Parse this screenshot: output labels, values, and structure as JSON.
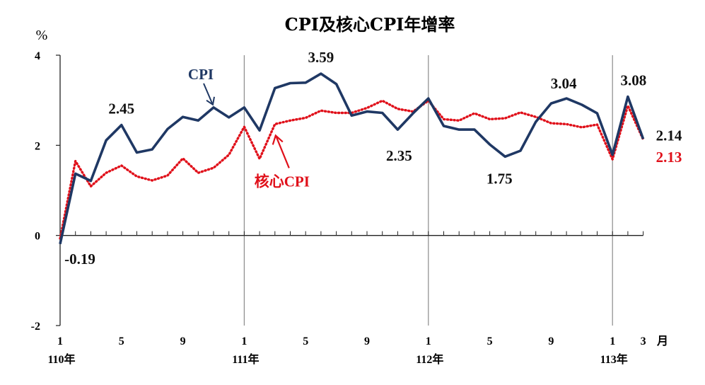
{
  "chart_data": {
    "type": "line",
    "title": "CPI及核心CPI年增率",
    "ylabel": "%",
    "xlabel_unit": "月",
    "ylim": [
      -2,
      4
    ],
    "yticks": [
      "4",
      "2",
      "0",
      "-2"
    ],
    "x_ticks": [
      {
        "index": 0,
        "label": "1",
        "year": "110年"
      },
      {
        "index": 4,
        "label": "5"
      },
      {
        "index": 8,
        "label": "9"
      },
      {
        "index": 12,
        "label": "1",
        "year": "111年"
      },
      {
        "index": 16,
        "label": "5"
      },
      {
        "index": 20,
        "label": "9"
      },
      {
        "index": 24,
        "label": "1",
        "year": "112年"
      },
      {
        "index": 28,
        "label": "5"
      },
      {
        "index": 32,
        "label": "9"
      },
      {
        "index": 36,
        "label": "1",
        "year": "113年"
      },
      {
        "index": 38,
        "label": "3"
      }
    ],
    "year_dividers": [
      0,
      12,
      24,
      36
    ],
    "series": [
      {
        "name": "CPI",
        "color": "#1f3864",
        "style": "solid",
        "values": [
          -0.19,
          1.37,
          1.21,
          2.11,
          2.45,
          1.84,
          1.91,
          2.36,
          2.63,
          2.55,
          2.84,
          2.62,
          2.84,
          2.33,
          3.27,
          3.38,
          3.39,
          3.59,
          3.36,
          2.66,
          2.75,
          2.72,
          2.35,
          2.71,
          3.04,
          2.43,
          2.35,
          2.35,
          2.02,
          1.75,
          1.88,
          2.52,
          2.93,
          3.04,
          2.9,
          2.71,
          1.79,
          3.08,
          2.14
        ]
      },
      {
        "name": "核心CPI",
        "color": "#e0101a",
        "style": "dotted",
        "values": [
          -0.07,
          1.65,
          1.09,
          1.39,
          1.55,
          1.31,
          1.22,
          1.33,
          1.71,
          1.39,
          1.5,
          1.79,
          2.41,
          1.7,
          2.47,
          2.55,
          2.61,
          2.77,
          2.72,
          2.72,
          2.83,
          2.99,
          2.81,
          2.75,
          2.99,
          2.58,
          2.55,
          2.71,
          2.58,
          2.6,
          2.73,
          2.63,
          2.49,
          2.47,
          2.4,
          2.46,
          1.69,
          2.88,
          2.13
        ]
      }
    ],
    "annotations": [
      {
        "text": "-0.19",
        "series": 0,
        "index": 0
      },
      {
        "text": "2.45",
        "series": 0,
        "index": 4
      },
      {
        "text": "3.59",
        "series": 0,
        "index": 17
      },
      {
        "text": "2.35",
        "series": 0,
        "index": 22
      },
      {
        "text": "1.75",
        "series": 0,
        "index": 29
      },
      {
        "text": "3.04",
        "series": 0,
        "index": 33
      },
      {
        "text": "3.08",
        "series": 0,
        "index": 37
      },
      {
        "text": "2.14",
        "series": 0,
        "index": 38
      },
      {
        "text": "2.13",
        "series": 1,
        "index": 38
      }
    ],
    "series_labels": [
      {
        "text": "CPI",
        "series": 0
      },
      {
        "text": "核心CPI",
        "series": 1
      }
    ]
  }
}
